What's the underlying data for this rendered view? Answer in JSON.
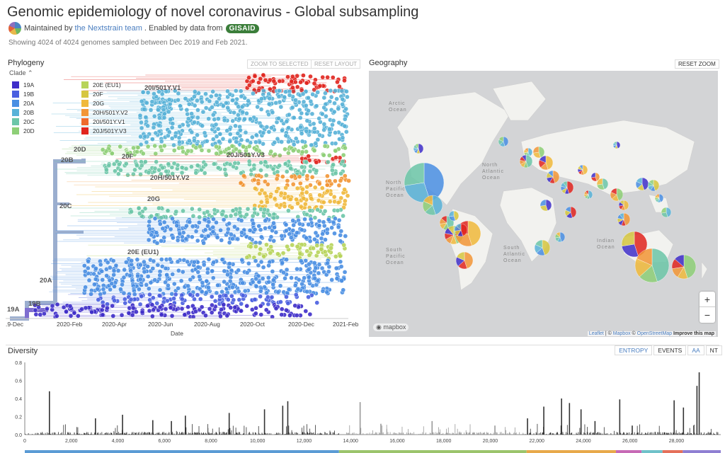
{
  "header": {
    "title": "Genomic epidemiology of novel coronavirus - Global subsampling",
    "maintained_prefix": "Maintained by",
    "maintainer": "the Nextstrain team",
    "enabled_text": ". Enabled by data from",
    "data_source": "GISAID",
    "showing": "Showing 4024 of 4024 genomes sampled between Dec 2019 and Feb 2021."
  },
  "phylogeny": {
    "title": "Phylogeny",
    "zoom_btn": "ZOOM TO SELECTED",
    "reset_btn": "RESET LAYOUT",
    "legend_title": "Clade",
    "legend": [
      {
        "label": "19A",
        "color": "#3f2ec9"
      },
      {
        "label": "19B",
        "color": "#4a5fe0"
      },
      {
        "label": "20A",
        "color": "#4a8fe3"
      },
      {
        "label": "20B",
        "color": "#58b2d8"
      },
      {
        "label": "20C",
        "color": "#6cc6a8"
      },
      {
        "label": "20D",
        "color": "#8ecf77"
      },
      {
        "label": "20E (EU1)",
        "color": "#b7d45a"
      },
      {
        "label": "20F",
        "color": "#d6c640"
      },
      {
        "label": "20G",
        "color": "#f0b93b"
      },
      {
        "label": "20H/501Y.V2",
        "color": "#f29636"
      },
      {
        "label": "20I/501Y.V1",
        "color": "#ee6a2c"
      },
      {
        "label": "20J/501Y.V3",
        "color": "#e1251f"
      }
    ],
    "branch_labels": [
      "19A",
      "19B",
      "20A",
      "20B",
      "20C",
      "20D",
      "20E (EU1)",
      "20F",
      "20G",
      "20H/501Y.V2",
      "20I/501Y.V1",
      "20J/501Y.V3"
    ],
    "x_ticks": [
      ".9-Dec",
      "2020-Feb",
      "2020-Apr",
      "2020-Jun",
      "2020-Aug",
      "2020-Oct",
      "2020-Dec",
      "2021-Feb"
    ],
    "x_label": "Date"
  },
  "geography": {
    "title": "Geography",
    "reset_btn": "RESET ZOOM",
    "zoom_in": "+",
    "zoom_out": "−",
    "mapbox": "mapbox",
    "attribution": {
      "leaflet": "Leaflet",
      "sep": " | © ",
      "mapbox": "Mapbox",
      "osm": "OpenStreetMap",
      "improve": "Improve this map"
    },
    "ocean_labels": [
      "North Atlantic Ocean",
      "North Pacific Ocean",
      "South Atlantic Ocean",
      "South Pacific Ocean",
      "Indian Ocean",
      "Arctic Ocean"
    ]
  },
  "diversity": {
    "title": "Diversity",
    "tab_entropy": "ENTROPY",
    "tab_events": "EVENTS",
    "tab_aa": "AA",
    "tab_nt": "NT",
    "y_ticks": [
      "0.0",
      "0.2",
      "0.4",
      "0.6",
      "0.8"
    ],
    "x_ticks": [
      "0",
      "2,000",
      "4,000",
      "6,000",
      "8,000",
      "10,000",
      "12,000",
      "14,000",
      "16,000",
      "18,000",
      "20,000",
      "22,000",
      "24,000",
      "26,000",
      "28,000"
    ]
  },
  "chart_data": {
    "type": "bar",
    "title": "",
    "xlabel": "",
    "ylabel": "",
    "xlim": [
      0,
      29903
    ],
    "ylim": [
      0,
      0.8
    ],
    "x": [
      1059,
      3037,
      4200,
      5500,
      6300,
      6900,
      8782,
      10300,
      11083,
      11300,
      14408,
      15300,
      17500,
      20200,
      21600,
      22300,
      23063,
      23403,
      23900,
      24500,
      25563,
      26100,
      27900,
      28300,
      28881,
      28977
    ],
    "values": [
      0.48,
      0.18,
      0.22,
      0.16,
      0.15,
      0.21,
      0.24,
      0.28,
      0.32,
      0.37,
      0.36,
      0.12,
      0.15,
      0.1,
      0.18,
      0.31,
      0.4,
      0.35,
      0.28,
      0.15,
      0.39,
      0.1,
      0.38,
      0.3,
      0.54,
      0.69
    ]
  }
}
